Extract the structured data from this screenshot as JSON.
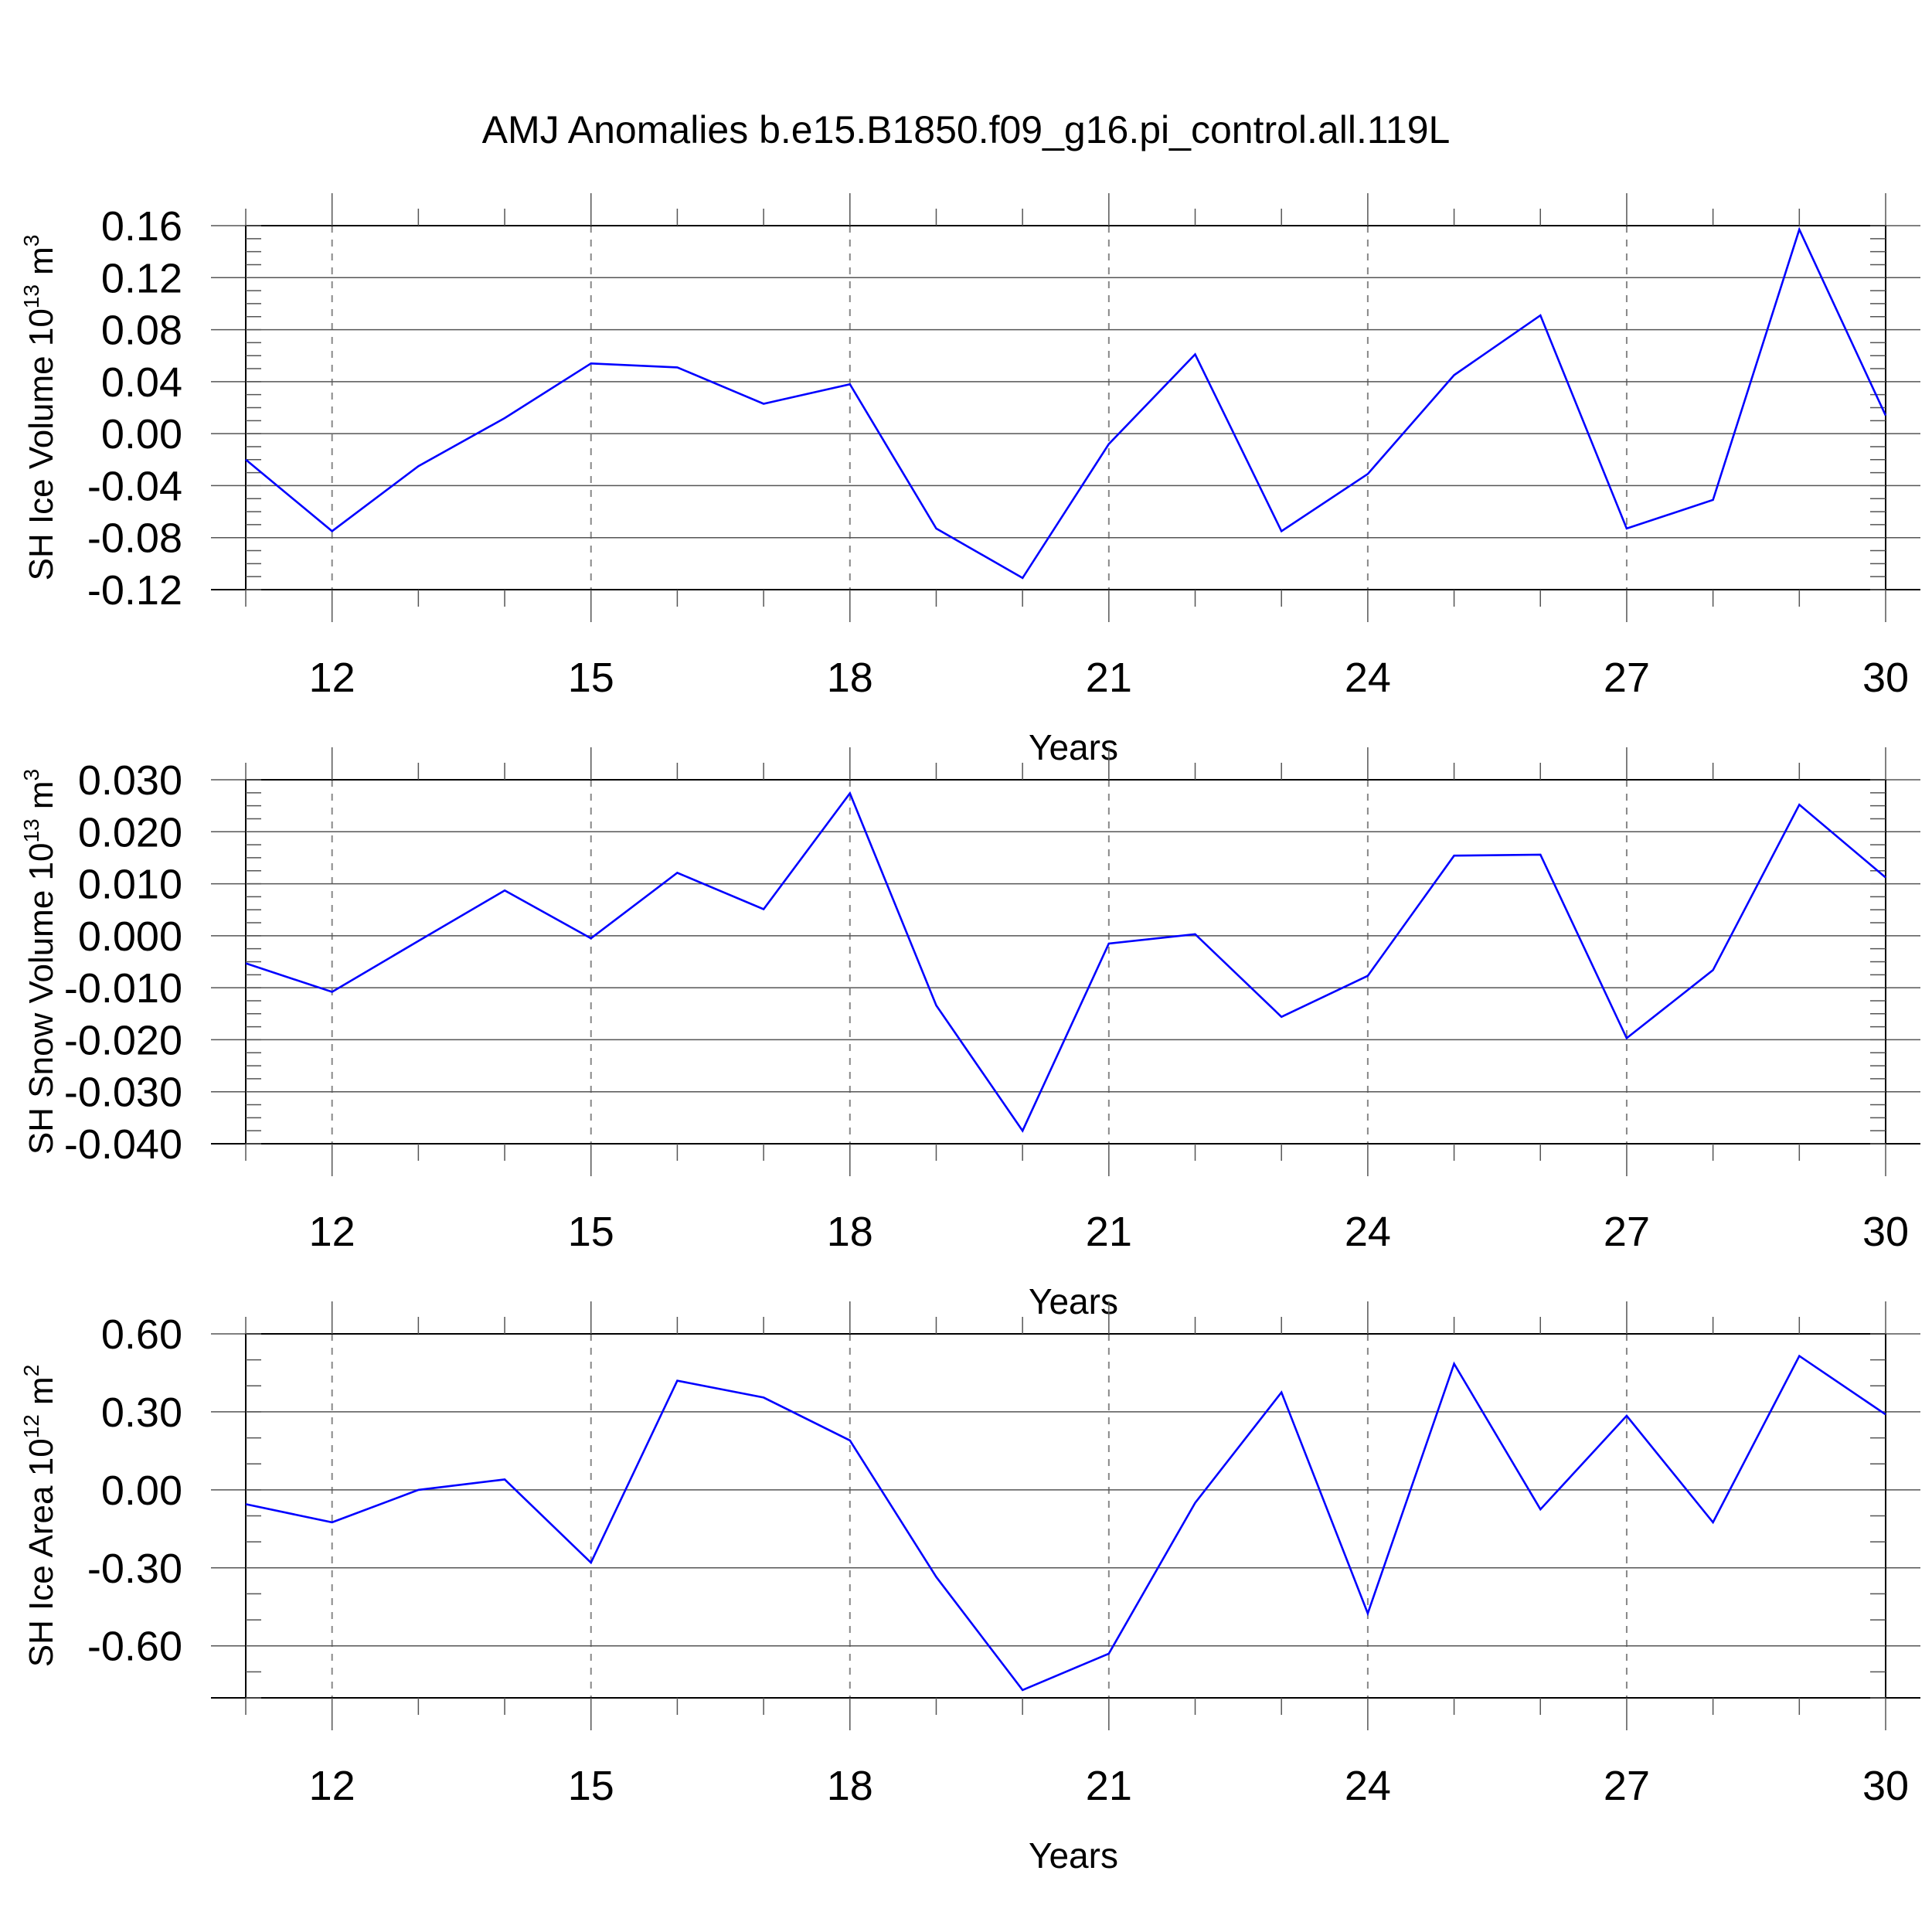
{
  "title": "AMJ Anomalies b.e15.B1850.f09_g16.pi_control.all.119L",
  "style": {
    "line_color": "#0000ff",
    "axis_color": "#000000",
    "grid_color": "#888888"
  },
  "chart_data": [
    {
      "type": "line",
      "ylabel_text": "SH Ice Volume 10",
      "ylabel_sup1": "13",
      "ylabel_unit": " m",
      "ylabel_sup2": "3",
      "xlabel": "Years",
      "xlim": [
        11,
        30
      ],
      "ylim": [
        -0.12,
        0.16
      ],
      "xticks": [
        12,
        15,
        18,
        21,
        24,
        27,
        30
      ],
      "xtick_labels": [
        "12",
        "15",
        "18",
        "21",
        "24",
        "27",
        "30"
      ],
      "yticks": [
        0.16,
        0.12,
        0.08,
        0.04,
        0.0,
        -0.04,
        -0.08,
        -0.12
      ],
      "ytick_labels": [
        "0.16",
        "0.12",
        "0.08",
        "0.04",
        "0.00",
        "-0.04",
        "-0.08",
        "-0.12"
      ],
      "y_minor_step": 0.01,
      "x": [
        11,
        12,
        13,
        14,
        15,
        16,
        17,
        18,
        19,
        20,
        21,
        22,
        23,
        24,
        25,
        26,
        27,
        28,
        29,
        30
      ],
      "series": [
        {
          "values": [
            -0.02,
            -0.075,
            -0.025,
            0.012,
            0.054,
            0.051,
            0.023,
            0.038,
            -0.073,
            -0.111,
            -0.008,
            0.061,
            -0.075,
            -0.031,
            0.045,
            0.091,
            -0.073,
            -0.051,
            0.157,
            0.014
          ]
        }
      ]
    },
    {
      "type": "line",
      "ylabel_text": "SH Snow Volume 10",
      "ylabel_sup1": "13",
      "ylabel_unit": " m",
      "ylabel_sup2": "3",
      "xlabel": "Years",
      "xlim": [
        11,
        30
      ],
      "ylim": [
        -0.04,
        0.03
      ],
      "xticks": [
        12,
        15,
        18,
        21,
        24,
        27,
        30
      ],
      "xtick_labels": [
        "12",
        "15",
        "18",
        "21",
        "24",
        "27",
        "30"
      ],
      "yticks": [
        0.03,
        0.02,
        0.01,
        0.0,
        -0.01,
        -0.02,
        -0.03,
        -0.04
      ],
      "ytick_labels": [
        "0.030",
        "0.020",
        "0.010",
        "0.000",
        "-0.010",
        "-0.020",
        "-0.030",
        "-0.040"
      ],
      "y_minor_step": 0.0025,
      "x": [
        11,
        12,
        13,
        14,
        15,
        16,
        17,
        18,
        19,
        20,
        21,
        22,
        23,
        24,
        25,
        26,
        27,
        28,
        29,
        30
      ],
      "series": [
        {
          "values": [
            -0.0053,
            -0.0108,
            -0.001,
            0.0087,
            -0.0005,
            0.0121,
            0.0051,
            0.0274,
            -0.0134,
            -0.0375,
            -0.0015,
            0.0003,
            -0.0156,
            -0.0077,
            0.0154,
            0.0156,
            -0.0197,
            -0.0066,
            0.0252,
            0.0112
          ]
        }
      ]
    },
    {
      "type": "line",
      "ylabel_text": "SH Ice Area 10",
      "ylabel_sup1": "12",
      "ylabel_unit": " m",
      "ylabel_sup2": "2",
      "xlabel": "Years",
      "xlim": [
        11,
        30
      ],
      "ylim": [
        -0.8,
        0.6
      ],
      "xticks": [
        12,
        15,
        18,
        21,
        24,
        27,
        30
      ],
      "xtick_labels": [
        "12",
        "15",
        "18",
        "21",
        "24",
        "27",
        "30"
      ],
      "yticks": [
        0.6,
        0.3,
        0.0,
        -0.3,
        -0.6
      ],
      "ytick_labels": [
        "0.60",
        "0.30",
        "0.00",
        "-0.30",
        "-0.60"
      ],
      "y_minor_step": 0.1,
      "x": [
        11,
        12,
        13,
        14,
        15,
        16,
        17,
        18,
        19,
        20,
        21,
        22,
        23,
        24,
        25,
        26,
        27,
        28,
        29,
        30
      ],
      "series": [
        {
          "values": [
            -0.055,
            -0.125,
            0.0,
            0.04,
            -0.28,
            0.42,
            0.355,
            0.19,
            -0.335,
            -0.77,
            -0.63,
            -0.05,
            0.375,
            -0.475,
            0.485,
            -0.075,
            0.285,
            -0.125,
            0.515,
            0.29
          ]
        }
      ]
    }
  ]
}
